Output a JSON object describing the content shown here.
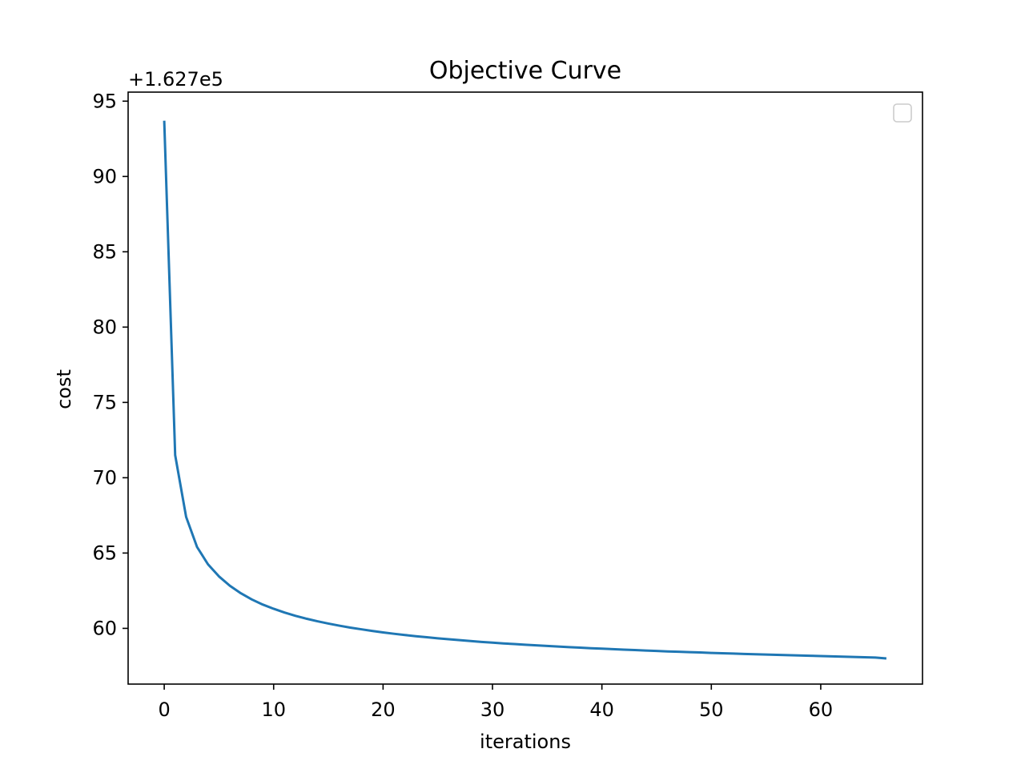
{
  "chart_data": {
    "type": "line",
    "title": "Objective Curve",
    "xlabel": "iterations",
    "ylabel": "cost",
    "offset_label": "+1.627e5",
    "xlim": [
      -3.3,
      69.3
    ],
    "ylim": [
      56.3,
      95.6
    ],
    "xticks": [
      0,
      10,
      20,
      30,
      40,
      50,
      60
    ],
    "yticks": [
      60,
      65,
      70,
      75,
      80,
      85,
      90,
      95
    ],
    "grid": false,
    "legend": {
      "placement": "top-right",
      "entries": []
    },
    "series": [
      {
        "name": "cost",
        "color": "#1f77b4",
        "x": [
          0,
          1,
          2,
          3,
          4,
          5,
          6,
          7,
          8,
          9,
          10,
          11,
          12,
          13,
          14,
          15,
          16,
          17,
          18,
          19,
          20,
          21,
          22,
          23,
          24,
          25,
          26,
          27,
          28,
          29,
          30,
          31,
          32,
          33,
          34,
          35,
          36,
          37,
          38,
          39,
          40,
          41,
          42,
          43,
          44,
          45,
          46,
          47,
          48,
          49,
          50,
          51,
          52,
          53,
          54,
          55,
          56,
          57,
          58,
          59,
          60,
          61,
          62,
          63,
          64,
          65,
          66
        ],
        "y": [
          93.7,
          71.5,
          67.4,
          65.4,
          64.25,
          63.45,
          62.83,
          62.33,
          61.92,
          61.58,
          61.3,
          61.05,
          60.83,
          60.64,
          60.47,
          60.32,
          60.18,
          60.05,
          59.94,
          59.83,
          59.73,
          59.64,
          59.56,
          59.48,
          59.41,
          59.34,
          59.28,
          59.22,
          59.16,
          59.1,
          59.05,
          59.0,
          58.96,
          58.91,
          58.87,
          58.83,
          58.79,
          58.75,
          58.72,
          58.68,
          58.65,
          58.62,
          58.59,
          58.56,
          58.53,
          58.5,
          58.47,
          58.45,
          58.42,
          58.4,
          58.37,
          58.35,
          58.33,
          58.3,
          58.28,
          58.26,
          58.24,
          58.22,
          58.2,
          58.18,
          58.16,
          58.14,
          58.12,
          58.1,
          58.08,
          58.06,
          58.0
        ]
      }
    ]
  }
}
